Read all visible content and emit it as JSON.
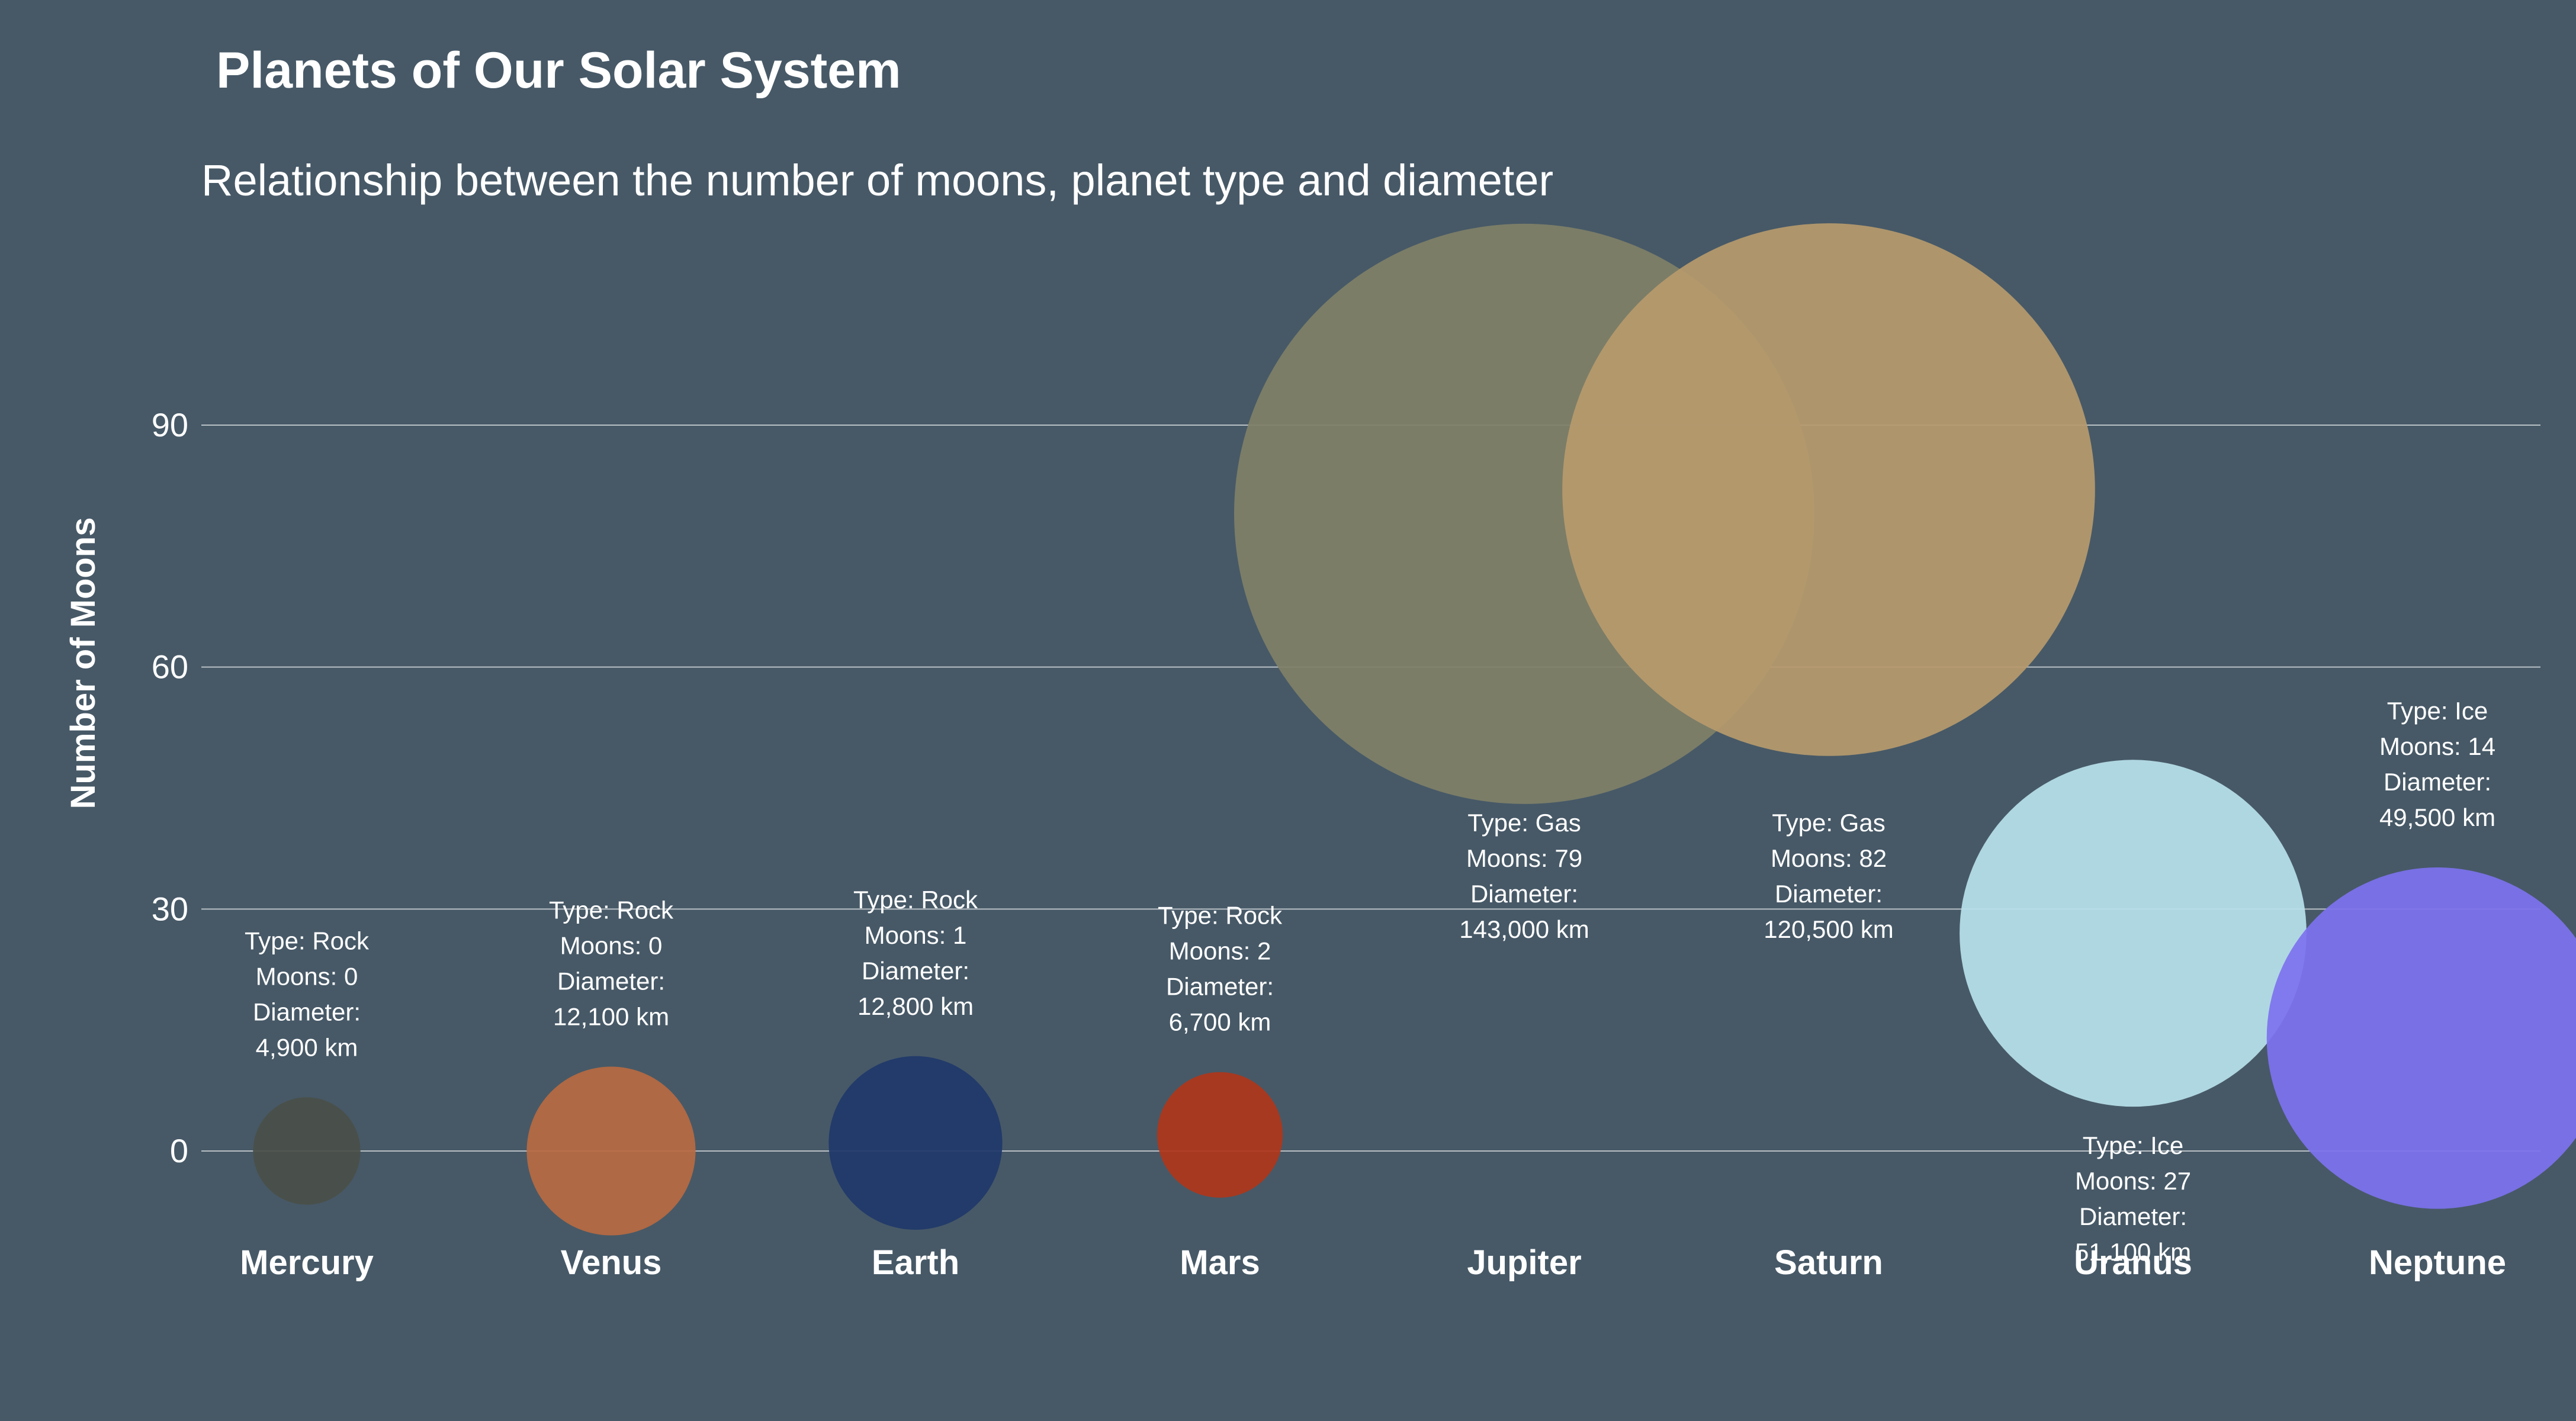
{
  "chart_data": {
    "type": "scatter",
    "title": "Planets of Our Solar System",
    "subtitle": "Relationship between the number of moons, planet type and diameter",
    "xlabel": "",
    "ylabel": "Number of Moons",
    "categories": [
      "Mercury",
      "Venus",
      "Earth",
      "Mars",
      "Jupiter",
      "Saturn",
      "Uranus",
      "Neptune"
    ],
    "ylim": [
      0,
      90
    ],
    "yticks": [
      0,
      30,
      60,
      90
    ],
    "grid": true,
    "legend": "none",
    "size_encoding": "diameter",
    "points": [
      {
        "planet": "Mercury",
        "type": "Rock",
        "moons": 0,
        "diameter_km": 4900,
        "color": "#4a4f49",
        "label": [
          "Type: Rock",
          "Moons: 0",
          "Diameter:",
          "4,900 km"
        ]
      },
      {
        "planet": "Venus",
        "type": "Rock",
        "moons": 0,
        "diameter_km": 12100,
        "color": "#b86a41",
        "label": [
          "Type: Rock",
          "Moons: 0",
          "Diameter:",
          "12,100 km"
        ]
      },
      {
        "planet": "Earth",
        "type": "Rock",
        "moons": 1,
        "diameter_km": 12800,
        "color": "#1f386a",
        "label": [
          "Type: Rock",
          "Moons: 1",
          "Diameter:",
          "12,800 km"
        ]
      },
      {
        "planet": "Mars",
        "type": "Rock",
        "moons": 2,
        "diameter_km": 6700,
        "color": "#b0361a",
        "label": [
          "Type: Rock",
          "Moons: 2",
          "Diameter:",
          "6,700 km"
        ]
      },
      {
        "planet": "Jupiter",
        "type": "Gas",
        "moons": 79,
        "diameter_km": 143000,
        "color": "#808067",
        "label": [
          "Type: Gas",
          "Moons: 79",
          "Diameter:",
          "143,000 km"
        ]
      },
      {
        "planet": "Saturn",
        "type": "Gas",
        "moons": 82,
        "diameter_km": 120500,
        "color": "#b79a6d",
        "label": [
          "Type: Gas",
          "Moons: 82",
          "Diameter:",
          "120,500 km"
        ]
      },
      {
        "planet": "Uranus",
        "type": "Ice",
        "moons": 27,
        "diameter_km": 51100,
        "color": "#b8e2ec",
        "label": [
          "Type: Ice",
          "Moons: 27",
          "Diameter:",
          "51,100 km"
        ]
      },
      {
        "planet": "Neptune",
        "type": "Ice",
        "moons": 14,
        "diameter_km": 49500,
        "color": "#7d72ef",
        "label": [
          "Type: Ice",
          "Moons: 14",
          "Diameter:",
          "49,500 km"
        ]
      }
    ]
  }
}
